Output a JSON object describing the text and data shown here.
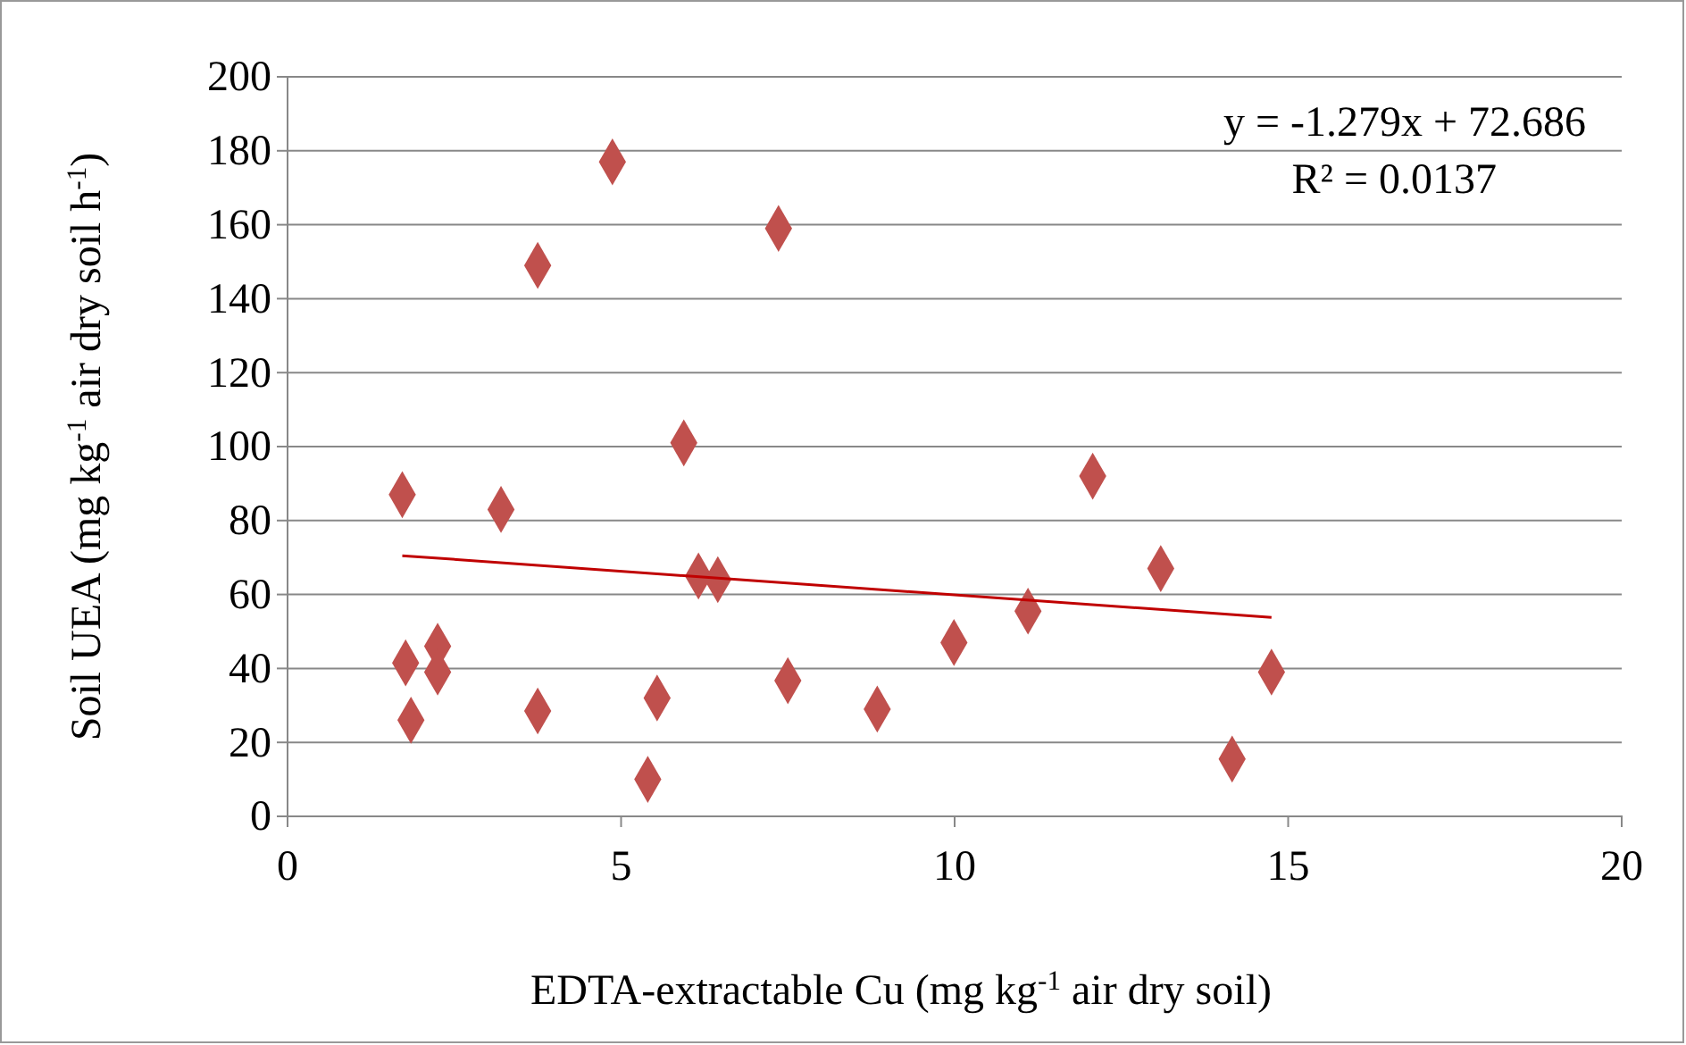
{
  "chart_data": {
    "type": "scatter",
    "xlabel": "EDTA-extractable Cu (mg kg$^{-1}$ air dry soil)",
    "ylabel": "Soil UEA (mg kg$^{-1}$ air dry soil h$^{-1}$)",
    "xlim": [
      0,
      20
    ],
    "xticks": [
      0,
      5,
      10,
      15,
      20
    ],
    "ylim": [
      0,
      200
    ],
    "yticks": [
      0,
      20,
      40,
      60,
      80,
      100,
      120,
      140,
      160,
      180,
      200
    ],
    "grid": "y",
    "annotations": [
      "y = -1.279x + 72.686",
      "R² = 0.0137"
    ],
    "series": [
      {
        "color": "#c0504d",
        "marker": "diamond",
        "x": [
          1.72,
          1.77,
          1.85,
          2.25,
          2.25,
          3.2,
          3.75,
          3.75,
          4.87,
          5.54,
          5.4,
          5.94,
          6.16,
          6.45,
          7.36,
          7.5,
          8.84,
          9.99,
          11.1,
          12.07,
          13.09,
          14.16,
          14.75
        ],
        "values": [
          87,
          41.5,
          26,
          46,
          39,
          83,
          149,
          28.5,
          177,
          32,
          10,
          101,
          65,
          64,
          159,
          36.7,
          29,
          47,
          55.5,
          92,
          67,
          15.5,
          39
        ]
      },
      {
        "type": "line",
        "color": "#c00000",
        "x": [
          1.72,
          14.75
        ],
        "values": [
          70.5,
          53.8
        ],
        "marker": "none"
      }
    ]
  }
}
